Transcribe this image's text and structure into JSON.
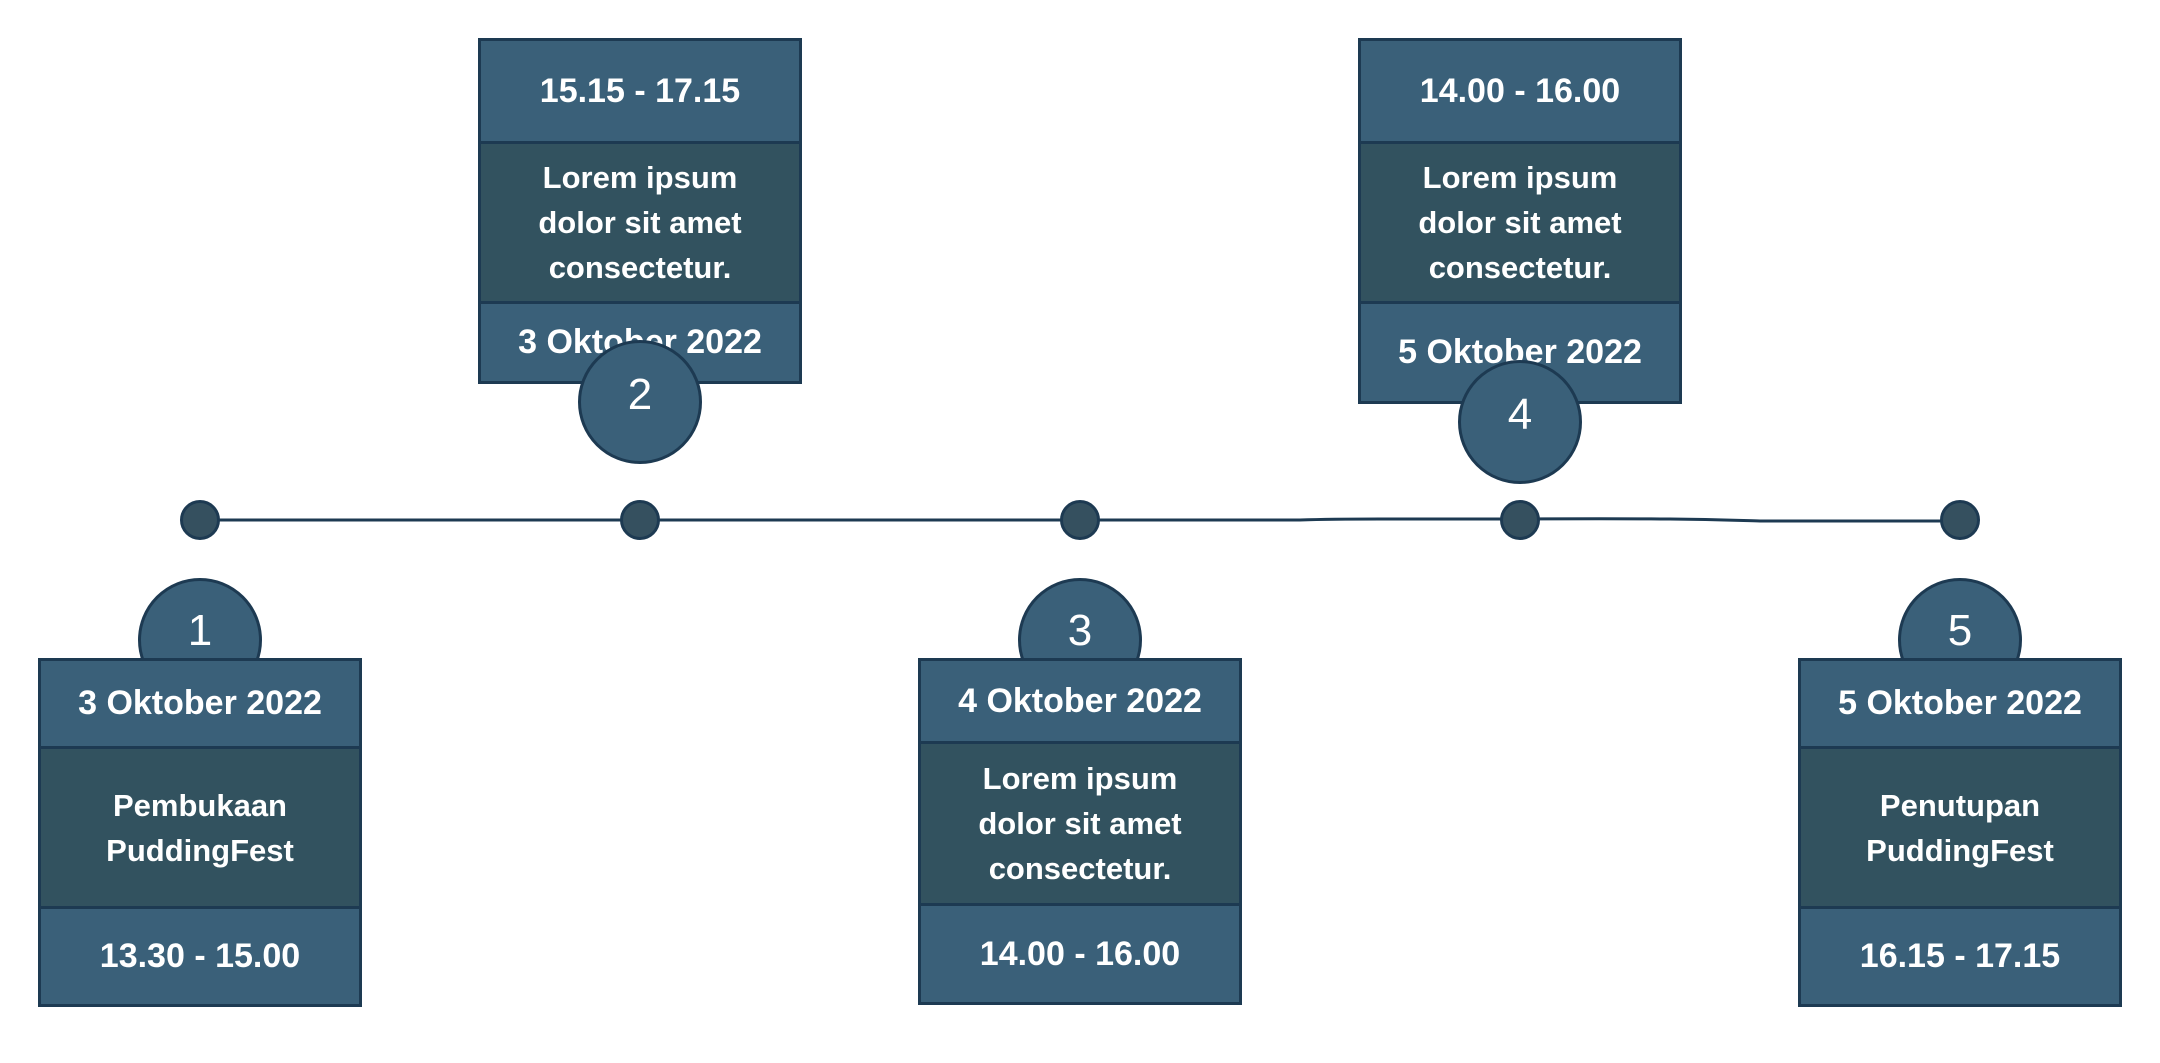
{
  "colors": {
    "card_header": "#3a6079",
    "card_body": "#32525f",
    "border": "#1d3a52",
    "dot": "#35505f",
    "text": "#ffffff"
  },
  "milestones": [
    {
      "number": "1",
      "date": "3 Oktober 2022",
      "description": "Pembukaan PuddingFest",
      "time": "13.30 - 15.00"
    },
    {
      "number": "2",
      "date": "3 Oktober 2022",
      "description": "Lorem ipsum dolor sit amet consectetur.",
      "time": "15.15 - 17.15"
    },
    {
      "number": "3",
      "date": "4 Oktober 2022",
      "description": "Lorem ipsum dolor sit amet consectetur.",
      "time": "14.00 - 16.00"
    },
    {
      "number": "4",
      "date": "5 Oktober 2022",
      "description": "Lorem ipsum dolor sit amet consectetur.",
      "time": "14.00 - 16.00"
    },
    {
      "number": "5",
      "date": "5 Oktober 2022",
      "description": "Penutupan PuddingFest",
      "time": "16.15 - 17.15"
    }
  ]
}
